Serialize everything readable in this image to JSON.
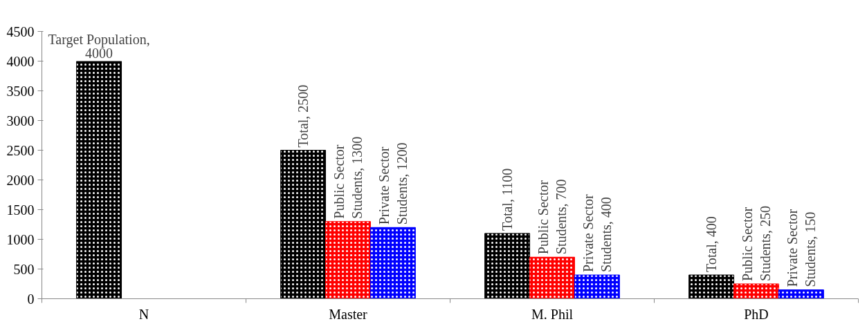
{
  "chart_data": {
    "type": "bar",
    "categories": [
      "N",
      "Master",
      "M. Phil",
      "PhD"
    ],
    "series": [
      {
        "color": "#000000",
        "values": [
          4000,
          2500,
          1100,
          400
        ],
        "value_labels": [
          "Target Population, 4000",
          "Total, 2500",
          "Total, 1100",
          "Total, 400"
        ]
      },
      {
        "color": "#ff0000",
        "values": [
          null,
          1300,
          700,
          250
        ],
        "value_labels": [
          null,
          "Public Sector Students, 1300",
          "Public Sector Students, 700",
          "Public Sector Students, 250"
        ]
      },
      {
        "color": "#0000ff",
        "values": [
          null,
          1200,
          400,
          150
        ],
        "value_labels": [
          null,
          "Private Sector Students, 1200",
          "Private Sector Students, 400",
          "Private Sector Students, 150"
        ]
      }
    ],
    "ylim": [
      0,
      4500
    ],
    "yticks": [
      0,
      500,
      1000,
      1500,
      2000,
      2500,
      3000,
      3500,
      4000,
      4500
    ],
    "grid": false
  }
}
